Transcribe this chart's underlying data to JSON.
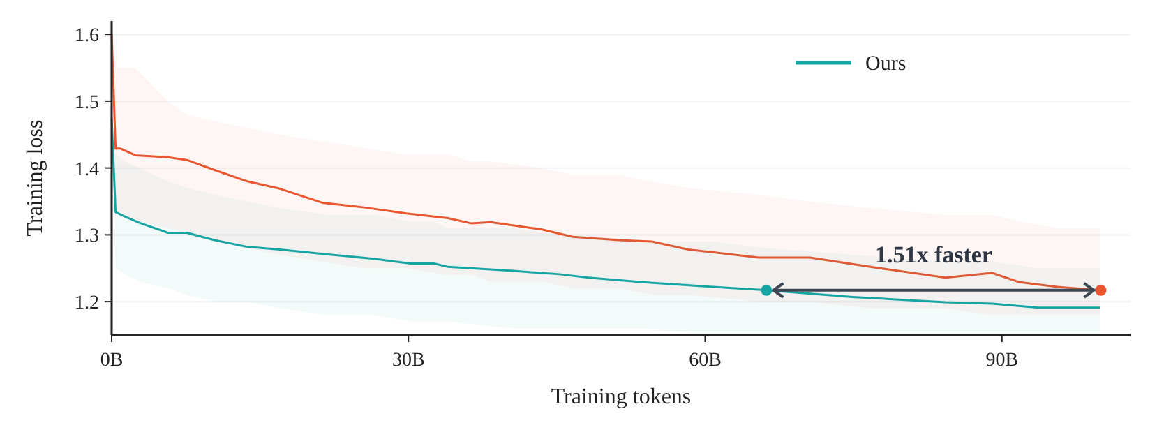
{
  "chart_data": {
    "type": "line",
    "xlabel": "Training tokens",
    "ylabel": "Training loss",
    "xlim": [
      0,
      103
    ],
    "ylim": [
      1.15,
      1.62
    ],
    "xticks": [
      {
        "value": 0,
        "label": "0B"
      },
      {
        "value": 30,
        "label": "30B"
      },
      {
        "value": 60,
        "label": "60B"
      },
      {
        "value": 90,
        "label": "90B"
      }
    ],
    "yticks": [
      1.2,
      1.3,
      1.4,
      1.5,
      1.6
    ],
    "grid": "y",
    "legend": "top right",
    "line_style": "solid",
    "series": [
      {
        "color": "#e8572f",
        "x": [
          0,
          0.4,
          0.9,
          2.4,
          5.7,
          7.6,
          10.4,
          13.7,
          17,
          21.3,
          25.5,
          29.8,
          34,
          36.4,
          38.3,
          43.5,
          46.6,
          51.3,
          54.6,
          58.3,
          65.4,
          70.6,
          76.7,
          84.3,
          89,
          91.8,
          95.6,
          99.9
        ],
        "values": [
          1.6,
          1.429,
          1.429,
          1.419,
          1.416,
          1.412,
          1.397,
          1.38,
          1.369,
          1.348,
          1.341,
          1.332,
          1.325,
          1.317,
          1.319,
          1.308,
          1.297,
          1.292,
          1.29,
          1.278,
          1.266,
          1.266,
          1.252,
          1.236,
          1.243,
          1.229,
          1.222,
          1.217
        ],
        "lower": [
          1.5,
          1.34,
          1.33,
          1.32,
          1.31,
          1.3,
          1.29,
          1.28,
          1.27,
          1.26,
          1.25,
          1.25,
          1.24,
          1.24,
          1.23,
          1.23,
          1.22,
          1.22,
          1.21,
          1.21,
          1.2,
          1.2,
          1.19,
          1.19,
          1.18,
          1.18,
          1.18,
          1.18
        ],
        "upper": [
          1.62,
          1.55,
          1.55,
          1.55,
          1.5,
          1.48,
          1.47,
          1.46,
          1.45,
          1.44,
          1.43,
          1.42,
          1.42,
          1.41,
          1.41,
          1.4,
          1.39,
          1.39,
          1.38,
          1.37,
          1.36,
          1.35,
          1.34,
          1.33,
          1.33,
          1.32,
          1.31,
          1.31
        ]
      },
      {
        "name": "Ours",
        "color": "#17a5a3",
        "x": [
          0,
          0.4,
          1.4,
          2.8,
          5.7,
          7.6,
          10.4,
          13.7,
          17,
          21.7,
          26.5,
          30.2,
          32.6,
          34,
          40.6,
          45.3,
          48.2,
          53.7,
          60.8,
          66.2,
          74.9,
          84.3,
          89,
          93.7,
          99.9
        ],
        "values": [
          1.474,
          1.334,
          1.327,
          1.318,
          1.303,
          1.303,
          1.292,
          1.282,
          1.278,
          1.271,
          1.264,
          1.257,
          1.257,
          1.252,
          1.246,
          1.241,
          1.236,
          1.229,
          1.222,
          1.217,
          1.207,
          1.199,
          1.197,
          1.191,
          1.191
        ],
        "lower": [
          1.4,
          1.25,
          1.24,
          1.23,
          1.22,
          1.21,
          1.2,
          1.2,
          1.19,
          1.18,
          1.18,
          1.17,
          1.17,
          1.17,
          1.16,
          1.16,
          1.16,
          1.16,
          1.15,
          1.15,
          1.15,
          1.15,
          1.15,
          1.15,
          1.15
        ],
        "upper": [
          1.5,
          1.42,
          1.41,
          1.4,
          1.38,
          1.37,
          1.36,
          1.35,
          1.34,
          1.33,
          1.33,
          1.32,
          1.32,
          1.31,
          1.31,
          1.3,
          1.3,
          1.29,
          1.29,
          1.28,
          1.27,
          1.26,
          1.26,
          1.25,
          1.25
        ]
      },
      {
        "type": "scatter",
        "x": [
          66.2,
          100
        ],
        "values": [
          1.217,
          1.217
        ],
        "colors": [
          "#17a5a3",
          "#e8572f"
        ]
      }
    ],
    "annotations": [
      "1.51x faster"
    ]
  }
}
